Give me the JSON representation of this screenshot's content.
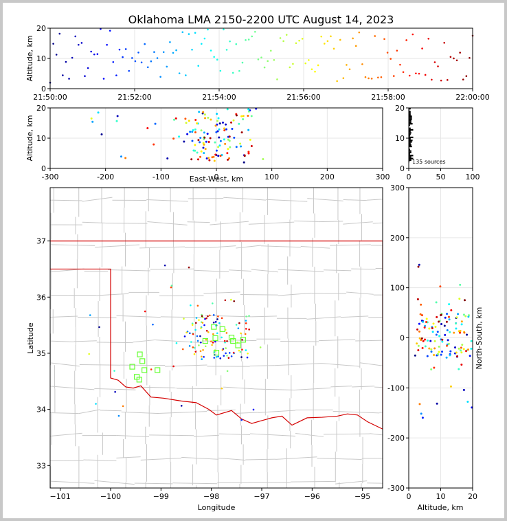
{
  "title": "Oklahoma LMA 2150-2200 UTC August 14, 2023",
  "sources_label": "135 sources",
  "colors": {
    "frame": "#c8c8c8",
    "state_line": "#d40000",
    "county": "#c8c8c8",
    "station": "#66ff33"
  },
  "chart_data": [
    {
      "name": "time-height",
      "type": "scatter",
      "xlabel": "",
      "ylabel": "Altitude, km",
      "x_ticks": [
        "21:50:00",
        "21:52:00",
        "21:54:00",
        "21:56:00",
        "21:58:00",
        "22:00:00"
      ],
      "xlim_minutes": [
        0,
        10
      ],
      "ylim": [
        0,
        20
      ],
      "y_ticks": [
        0,
        10,
        20
      ]
    },
    {
      "name": "east-west-altitude",
      "type": "scatter",
      "xlabel": "East-West, km",
      "ylabel": "Altitude, km",
      "xlim": [
        -300,
        300
      ],
      "x_ticks": [
        -300,
        -200,
        -100,
        0,
        100,
        200,
        300
      ],
      "ylim": [
        0,
        20
      ],
      "y_ticks": [
        0,
        10,
        20
      ]
    },
    {
      "name": "altitude-histogram",
      "type": "bar",
      "xlim": [
        0,
        100
      ],
      "x_ticks": [
        0,
        50,
        100
      ],
      "ylim": [
        0,
        20
      ],
      "y_ticks": [
        0,
        10,
        20
      ]
    },
    {
      "name": "plan-view",
      "type": "scatter",
      "xlabel": "Longitude",
      "ylabel": "Latitude",
      "xlim": [
        -101.2,
        -94.6
      ],
      "ylim": [
        32.6,
        37.95
      ],
      "x_ticks": [
        -101,
        -100,
        -99,
        -98,
        -97,
        -96,
        -95
      ],
      "x_tick_labels": [
        "−101",
        "−100",
        "−99",
        "−98",
        "−97",
        "−96",
        "−95"
      ],
      "y_ticks": [
        33,
        34,
        35,
        36,
        37
      ],
      "stations": [
        [
          -97.95,
          35.47
        ],
        [
          -97.78,
          35.43
        ],
        [
          -97.57,
          35.22
        ],
        [
          -97.37,
          35.24
        ],
        [
          -97.47,
          35.14
        ],
        [
          -98.12,
          35.22
        ],
        [
          -97.92,
          35.27
        ],
        [
          -97.9,
          35.01
        ],
        [
          -97.6,
          35.28
        ],
        [
          -99.42,
          34.98
        ],
        [
          -99.37,
          34.86
        ],
        [
          -99.33,
          34.7
        ],
        [
          -99.57,
          34.76
        ],
        [
          -99.48,
          34.58
        ],
        [
          -99.43,
          34.53
        ],
        [
          -99.07,
          34.7
        ]
      ]
    },
    {
      "name": "altitude-north-south",
      "type": "scatter",
      "xlabel": "Altitude, km",
      "ylabel": "North-South, km",
      "xlim": [
        0,
        20
      ],
      "x_ticks": [
        0,
        10,
        20
      ],
      "ylim": [
        -300,
        300
      ],
      "y_ticks": [
        -300,
        -200,
        -100,
        0,
        100,
        200,
        300
      ]
    }
  ]
}
